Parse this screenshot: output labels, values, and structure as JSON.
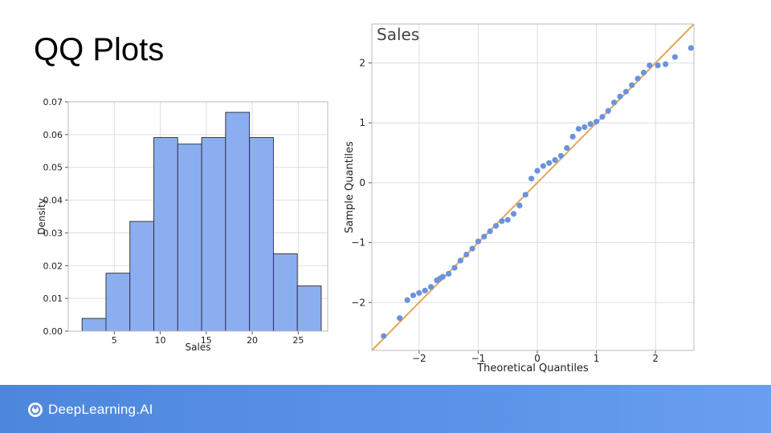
{
  "slide": {
    "title": "QQ Plots"
  },
  "footer": {
    "brand_name": "DeepLearning.AI",
    "brand_icon": "deeplearning-ai-logo-icon"
  },
  "colors": {
    "bar_fill": "#8aaef0",
    "bar_edge": "#2b2b2b",
    "point": "#6b93dd",
    "ref_line": "#e3a659",
    "grid": "#dddddd",
    "footer": "#5b93e8"
  },
  "chart_data": [
    {
      "type": "bar",
      "title": "",
      "xlabel": "Sales",
      "ylabel": "Density",
      "bin_edges": [
        1.5,
        4.1,
        6.7,
        9.3,
        11.9,
        14.5,
        17.1,
        19.7,
        22.3,
        24.9,
        27.5
      ],
      "values": [
        0.0039,
        0.0177,
        0.0335,
        0.0591,
        0.0571,
        0.0591,
        0.0668,
        0.0591,
        0.0236,
        0.0138
      ],
      "xticks": [
        5,
        10,
        15,
        20,
        25
      ],
      "yticks": [
        0.0,
        0.01,
        0.02,
        0.03,
        0.04,
        0.05,
        0.06,
        0.07
      ],
      "ytick_labels": [
        "0.00",
        "0.01",
        "0.02",
        "0.03",
        "0.04",
        "0.05",
        "0.06",
        "0.07"
      ],
      "xlim": [
        0,
        28.2
      ],
      "ylim": [
        0,
        0.07
      ],
      "grid": true
    },
    {
      "type": "scatter",
      "title": "Sales",
      "xlabel": "Theoretical Quantiles",
      "ylabel": "Sample Quantiles",
      "xticks": [
        -2,
        -1,
        0,
        1,
        2
      ],
      "xtick_labels": [
        "−2",
        "−1",
        "0",
        "1",
        "2"
      ],
      "yticks": [
        -2,
        -1,
        0,
        1,
        2
      ],
      "ytick_labels": [
        "−2",
        "−1",
        "0",
        "1",
        "2"
      ],
      "xlim": [
        -2.8,
        2.65
      ],
      "ylim": [
        -2.8,
        2.65
      ],
      "grid": true,
      "reference_line": {
        "from": [
          -2.8,
          -2.8
        ],
        "to": [
          2.65,
          2.65
        ]
      },
      "x": [
        -2.6,
        -2.33,
        -2.2,
        -2.1,
        -2.0,
        -1.9,
        -1.8,
        -1.7,
        -1.65,
        -1.6,
        -1.5,
        -1.4,
        -1.3,
        -1.2,
        -1.1,
        -1.0,
        -0.9,
        -0.8,
        -0.7,
        -0.6,
        -0.5,
        -0.4,
        -0.3,
        -0.2,
        -0.1,
        0.0,
        0.1,
        0.2,
        0.3,
        0.4,
        0.5,
        0.6,
        0.7,
        0.8,
        0.9,
        1.0,
        1.1,
        1.2,
        1.3,
        1.4,
        1.5,
        1.6,
        1.7,
        1.8,
        1.9,
        2.04,
        2.17,
        2.33,
        2.6
      ],
      "y": [
        -2.56,
        -2.26,
        -1.96,
        -1.88,
        -1.84,
        -1.8,
        -1.74,
        -1.63,
        -1.6,
        -1.57,
        -1.52,
        -1.42,
        -1.3,
        -1.2,
        -1.1,
        -0.98,
        -0.9,
        -0.81,
        -0.72,
        -0.64,
        -0.62,
        -0.52,
        -0.38,
        -0.2,
        0.07,
        0.2,
        0.28,
        0.33,
        0.38,
        0.45,
        0.58,
        0.77,
        0.9,
        0.93,
        0.98,
        1.02,
        1.1,
        1.2,
        1.34,
        1.44,
        1.52,
        1.63,
        1.74,
        1.84,
        1.96,
        1.96,
        1.98,
        2.1,
        2.25
      ]
    }
  ]
}
